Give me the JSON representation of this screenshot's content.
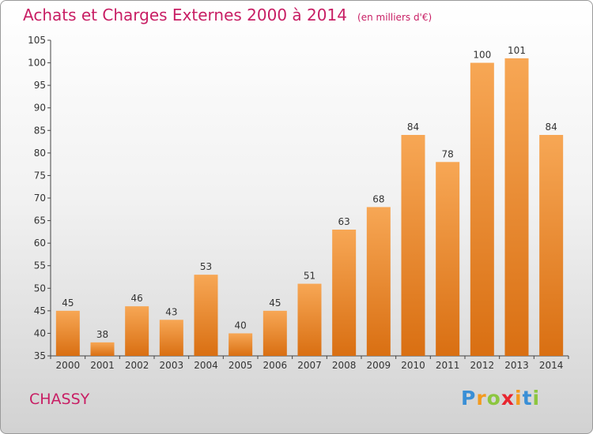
{
  "title": "Achats et Charges Externes 2000 à 2014",
  "unit": "(en milliers d'€)",
  "commune": "CHASSY",
  "logo": {
    "letters": [
      "P",
      "r",
      "o",
      "x",
      "i",
      "t",
      "i"
    ],
    "colors": [
      "#3a8fd6",
      "#f39a1e",
      "#8cc63f",
      "#e8262f",
      "#f39a1e",
      "#3a8fd6",
      "#8cc63f"
    ]
  },
  "colors": {
    "title": "#c81e64",
    "bar_top": "#f7a755",
    "bar_bottom": "#d96f12"
  },
  "chart_data": {
    "type": "bar",
    "categories": [
      "2000",
      "2001",
      "2002",
      "2003",
      "2004",
      "2005",
      "2006",
      "2007",
      "2008",
      "2009",
      "2010",
      "2011",
      "2012",
      "2013",
      "2014"
    ],
    "values": [
      45,
      38,
      46,
      43,
      53,
      40,
      45,
      51,
      63,
      68,
      84,
      78,
      100,
      101,
      84
    ],
    "title": "Achats et Charges Externes 2000 à 2014",
    "ylim": [
      35,
      105
    ],
    "yticks": [
      35,
      40,
      45,
      50,
      55,
      60,
      65,
      70,
      75,
      80,
      85,
      90,
      95,
      100,
      105
    ],
    "grid": false,
    "legend": "none"
  }
}
